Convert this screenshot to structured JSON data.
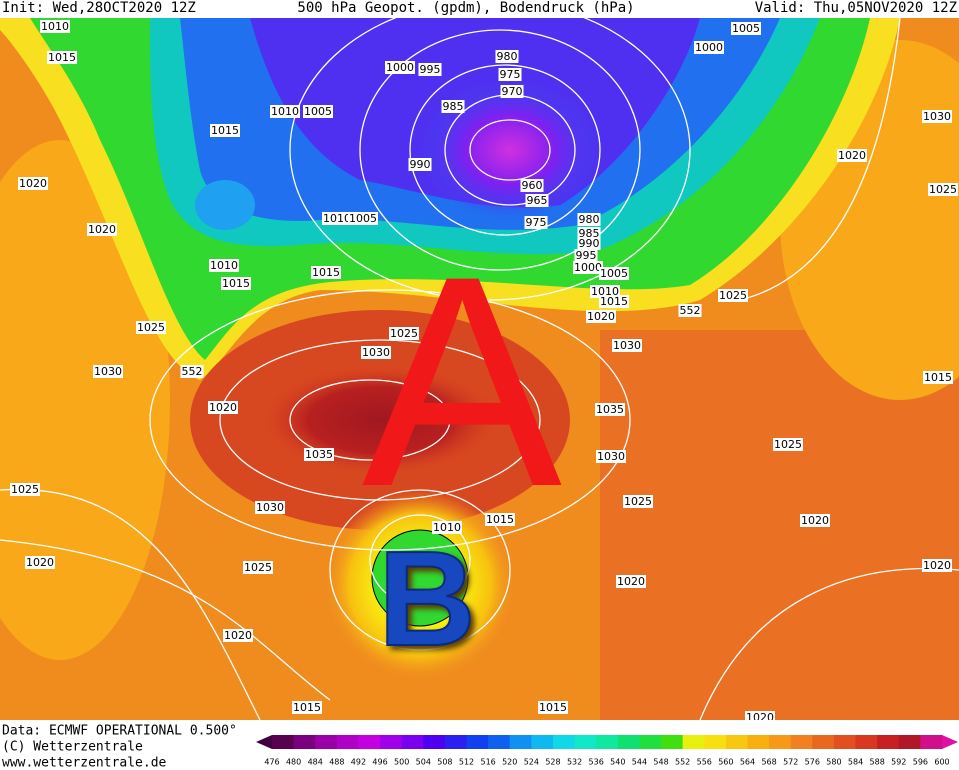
{
  "header": {
    "init": "Init: Wed,28OCT2020 12Z",
    "title": "500 hPa Geopot. (gpdm), Bodendruck (hPa)",
    "valid": "Valid: Thu,05NOV2020 12Z"
  },
  "overlay": {
    "high_letter": "A",
    "low_letter": "B"
  },
  "isobar_labels": [
    1010,
    1015,
    1000,
    995,
    980,
    975,
    970,
    985,
    1010,
    1005,
    1015,
    1020,
    990,
    960,
    965,
    975,
    980,
    985,
    990,
    995,
    1000,
    1010,
    1005,
    1020,
    1010,
    1015,
    1015,
    1005,
    1010,
    1015,
    1020,
    552,
    1025,
    1025,
    552,
    1025,
    1030,
    1030,
    1030,
    1020,
    1035,
    1035,
    1030,
    1025,
    1030,
    1025,
    1015,
    1010,
    1020,
    1025,
    1020,
    1020,
    1015,
    1015,
    1020,
    1020,
    1025,
    1015,
    1030,
    1020,
    1025,
    1005,
    1000,
    1020
  ],
  "footer": {
    "source": "Data: ECMWF OPERATIONAL 0.500°",
    "copyright": "(C) Wetterzentrale",
    "url": "www.wetterzentrale.de"
  },
  "colorbar": {
    "ticks": [
      476,
      480,
      484,
      488,
      492,
      496,
      500,
      504,
      508,
      512,
      516,
      520,
      524,
      528,
      532,
      536,
      540,
      544,
      548,
      552,
      556,
      560,
      564,
      568,
      572,
      576,
      580,
      584,
      588,
      592,
      596,
      600
    ],
    "colors": [
      "#5a0050",
      "#7a0080",
      "#9a00a8",
      "#b000c8",
      "#c400e0",
      "#a000e8",
      "#7a00f0",
      "#5000f0",
      "#2a20f0",
      "#1040f0",
      "#1060f0",
      "#1090f0",
      "#10b8f0",
      "#10d8e8",
      "#10e8c8",
      "#10e8a0",
      "#10e070",
      "#20e040",
      "#40e010",
      "#e8f010",
      "#f8e010",
      "#f8c810",
      "#f8b010",
      "#f89818",
      "#f08020",
      "#e86820",
      "#e05020",
      "#d83820",
      "#c82020",
      "#b01828",
      "#d0108a"
    ]
  }
}
